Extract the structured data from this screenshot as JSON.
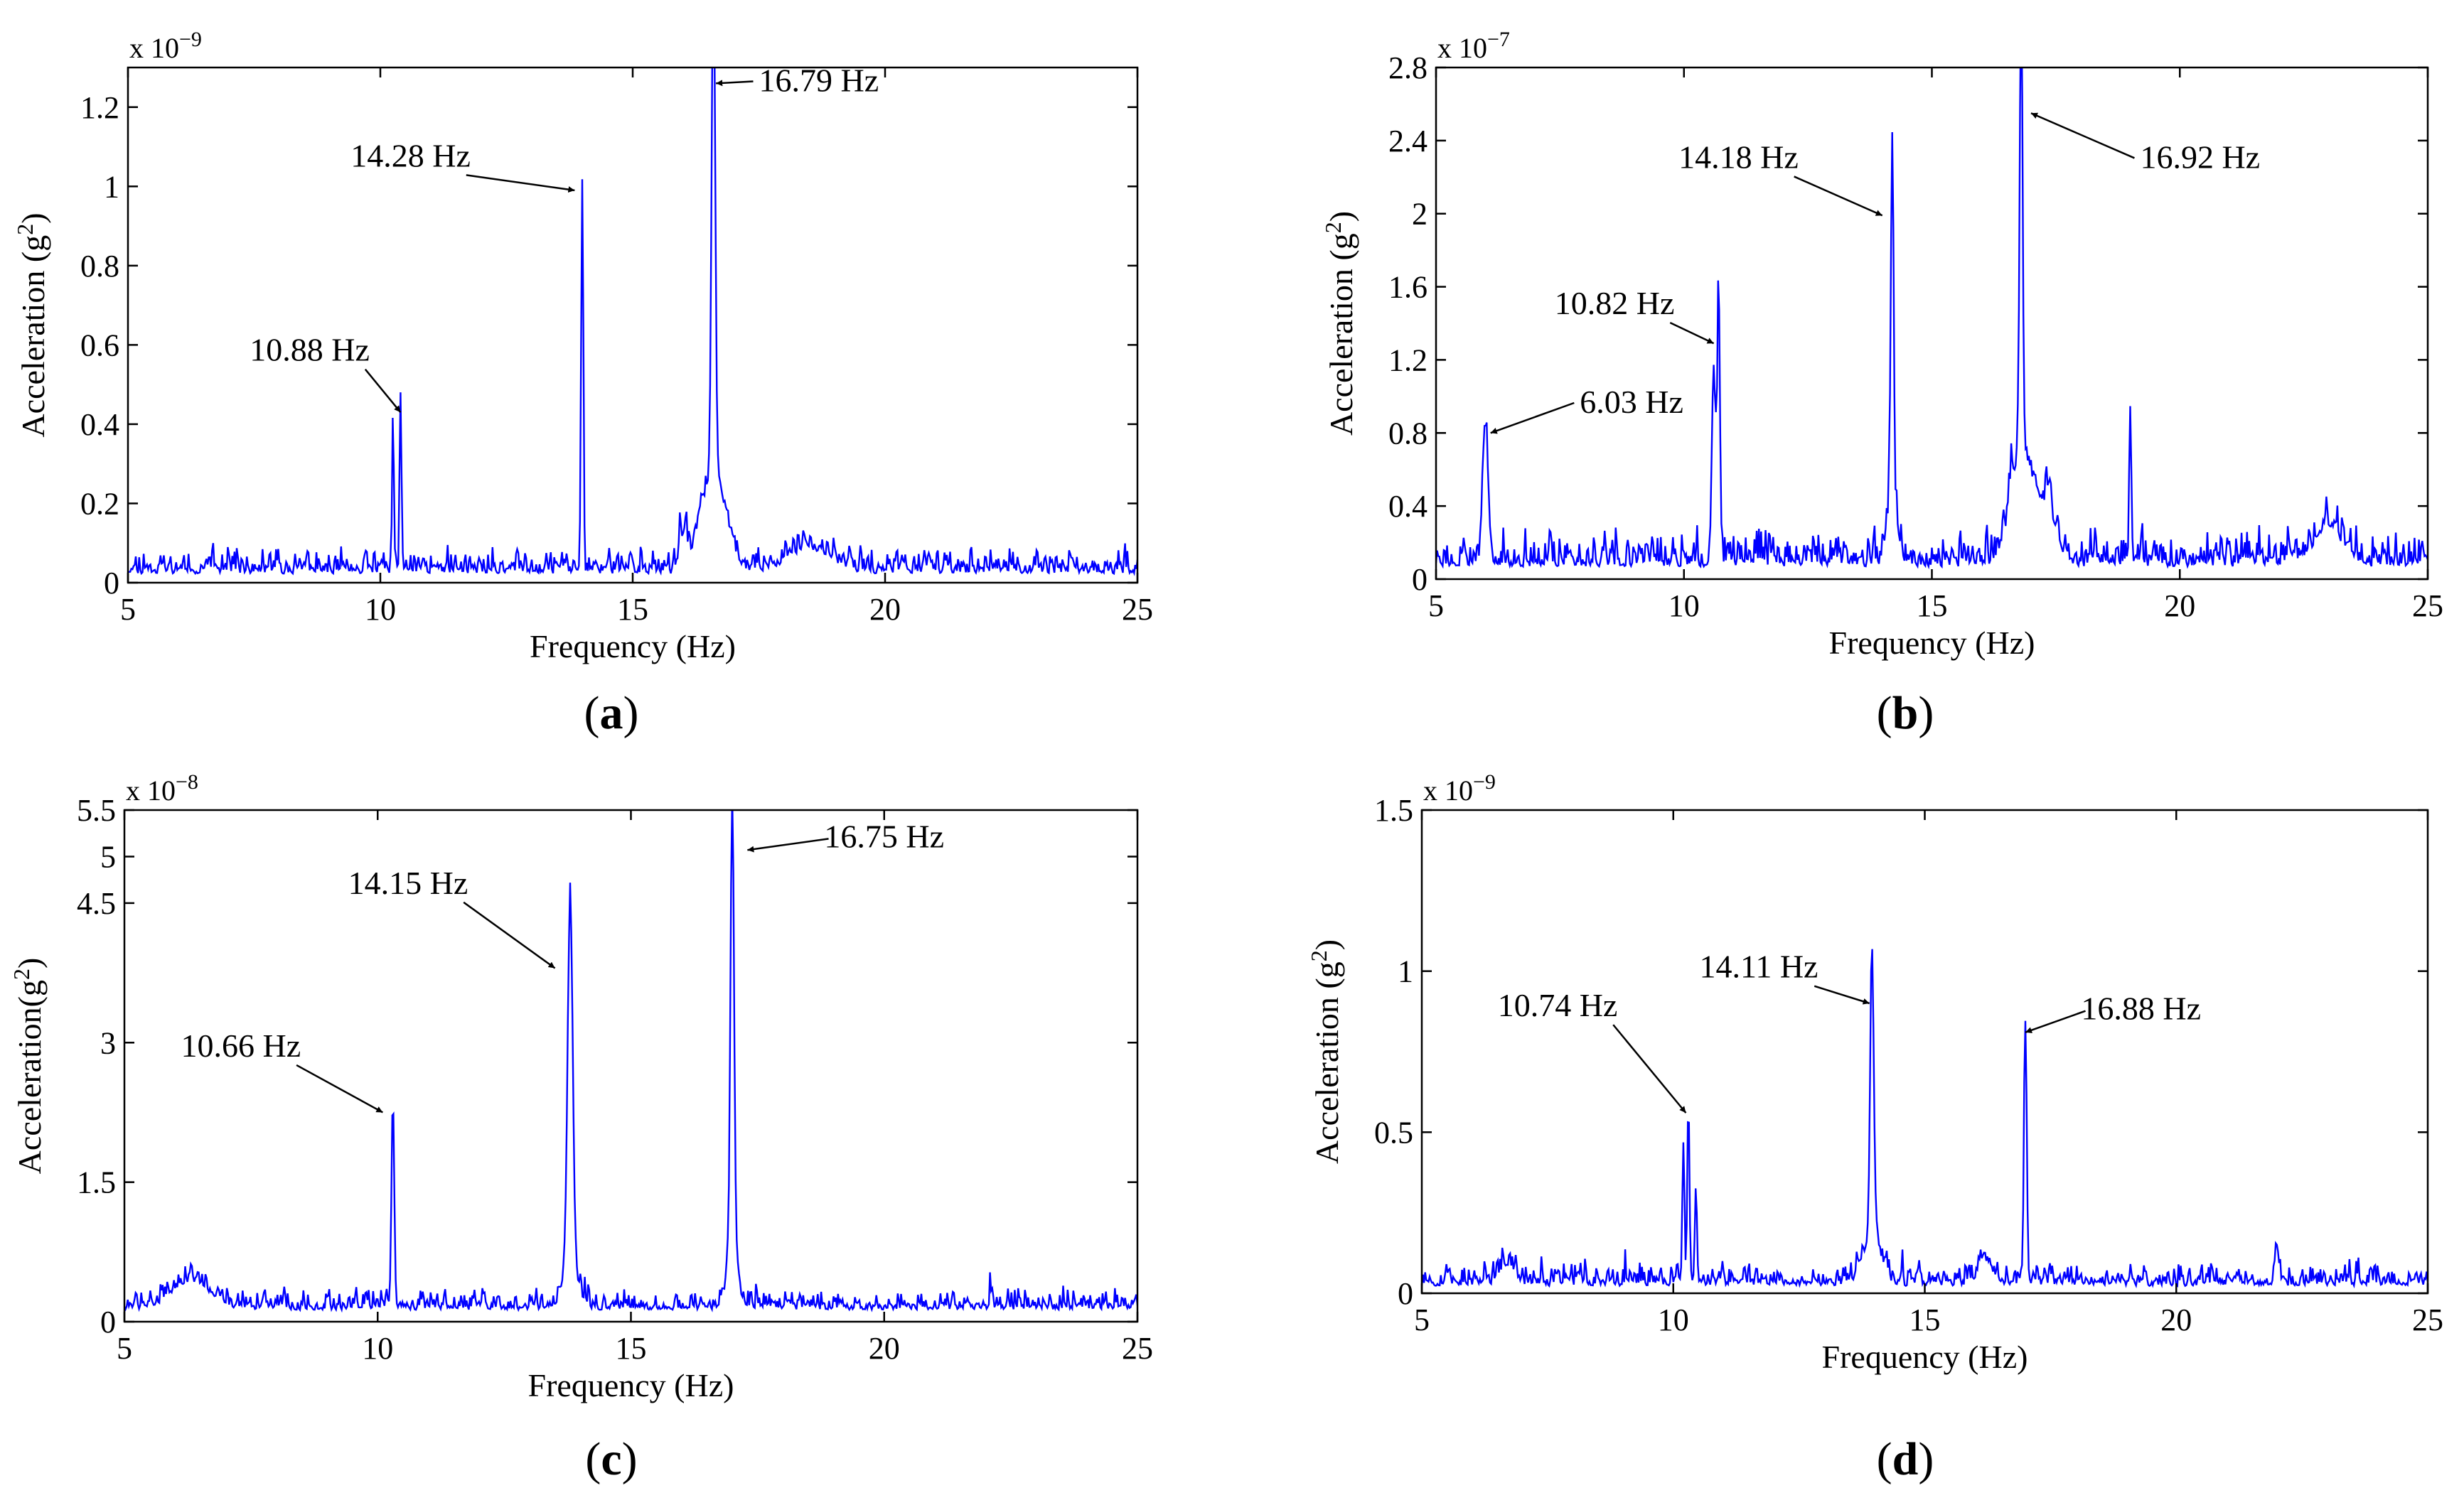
{
  "chart_data": [
    {
      "type": "line",
      "panel_label": "(a)",
      "xlabel": "Frequency (Hz)",
      "ylabel": "Acceleration (g",
      "ylabel_sup": "2",
      "ylabel_end": ")",
      "scale_base": "x 10",
      "scale_exp": "−9",
      "xlim": [
        5,
        25
      ],
      "ylim": [
        0,
        1.3
      ],
      "xticks": [
        5,
        10,
        15,
        20,
        25
      ],
      "xtick_labels": [
        "5",
        "10",
        "15",
        "20",
        "25"
      ],
      "yticks": [
        0,
        0.2,
        0.4,
        0.6,
        0.8,
        1,
        1.2
      ],
      "ytick_labels": [
        "0",
        "0.2",
        "0.4",
        "0.6",
        "0.8",
        "1",
        "1.2"
      ],
      "series": [
        {
          "name": "spectrum",
          "color": "#0000ff",
          "baseline": 0.05,
          "noise": 0.04,
          "seed": 11,
          "peaks": [
            [
              10.25,
              0.4,
              0.025
            ],
            [
              10.4,
              0.44,
              0.025
            ],
            [
              14.0,
              0.99,
              0.03
            ],
            [
              16.6,
              1.27,
              0.05
            ],
            [
              16.6,
              0.25,
              0.35
            ],
            [
              18.5,
              0.06,
              0.6
            ],
            [
              16.0,
              0.08,
              0.1
            ]
          ]
        }
      ],
      "annotations": [
        {
          "text": "10.88 Hz",
          "x": 10.88,
          "peak_x": 10.4,
          "peak_y": 0.43,
          "text_x": 8.6,
          "text_y": 0.56,
          "anchor": "middle"
        },
        {
          "text": "14.28 Hz",
          "x": 14.28,
          "peak_x": 13.85,
          "peak_y": 0.99,
          "text_x": 10.6,
          "text_y": 1.05,
          "anchor": "middle"
        },
        {
          "text": "16.79 Hz",
          "x": 16.79,
          "peak_x": 16.65,
          "peak_y": 1.26,
          "text_x": 17.5,
          "text_y": 1.24,
          "anchor": "start"
        }
      ]
    },
    {
      "type": "line",
      "panel_label": "(b)",
      "xlabel": "Frequency (Hz)",
      "ylabel": "Acceleration (g",
      "ylabel_sup": "2",
      "ylabel_end": ")",
      "scale_base": "x 10",
      "scale_exp": "−7",
      "xlim": [
        5,
        25
      ],
      "ylim": [
        0,
        2.8
      ],
      "xticks": [
        5,
        10,
        15,
        20,
        25
      ],
      "xtick_labels": [
        "5",
        "10",
        "15",
        "20",
        "25"
      ],
      "yticks": [
        0,
        0.4,
        0.8,
        1.2,
        1.6,
        2,
        2.4,
        2.8
      ],
      "ytick_labels": [
        "0",
        "0.4",
        "0.8",
        "1.2",
        "1.6",
        "2",
        "2.4",
        "2.8"
      ],
      "series": [
        {
          "name": "spectrum",
          "color": "#0000ff",
          "baseline": 0.15,
          "noise": 0.13,
          "seed": 23,
          "peaks": [
            [
              6.0,
              0.7,
              0.08
            ],
            [
              10.6,
              1.1,
              0.05
            ],
            [
              10.7,
              1.25,
              0.04
            ],
            [
              14.2,
              1.99,
              0.04
            ],
            [
              14.2,
              0.35,
              0.15
            ],
            [
              16.8,
              2.57,
              0.04
            ],
            [
              16.8,
              0.6,
              0.3
            ],
            [
              17.3,
              0.3,
              0.3
            ],
            [
              19.0,
              0.8,
              0.03
            ],
            [
              23.0,
              0.2,
              0.4
            ]
          ]
        }
      ],
      "annotations": [
        {
          "text": "6.03 Hz",
          "x": 6.03,
          "peak_x": 6.1,
          "peak_y": 0.8,
          "text_x": 7.9,
          "text_y": 0.91,
          "anchor": "start"
        },
        {
          "text": "10.82 Hz",
          "x": 10.82,
          "peak_x": 10.6,
          "peak_y": 1.29,
          "text_x": 8.6,
          "text_y": 1.45,
          "anchor": "middle"
        },
        {
          "text": "14.18 Hz",
          "x": 14.18,
          "peak_x": 14.0,
          "peak_y": 1.99,
          "text_x": 11.1,
          "text_y": 2.25,
          "anchor": "middle"
        },
        {
          "text": "16.92 Hz",
          "x": 16.92,
          "peak_x": 17.0,
          "peak_y": 2.55,
          "text_x": 19.2,
          "text_y": 2.25,
          "anchor": "start"
        }
      ]
    },
    {
      "type": "line",
      "panel_label": "(c)",
      "xlabel": "Frequency (Hz)",
      "ylabel": "Acceleration(g",
      "ylabel_sup": "2",
      "ylabel_end": ")",
      "scale_base": "x 10",
      "scale_exp": "−8",
      "xlim": [
        5,
        25
      ],
      "ylim": [
        0,
        5.5
      ],
      "xticks": [
        5,
        10,
        15,
        20,
        25
      ],
      "xtick_labels": [
        "5",
        "10",
        "15",
        "20",
        "25"
      ],
      "yticks": [
        0,
        1.5,
        3,
        4.5,
        5,
        5.5
      ],
      "ytick_labels": [
        "0",
        "1.5",
        "3",
        "4.5",
        "5",
        "5.5"
      ],
      "series": [
        {
          "name": "spectrum",
          "color": "#0000ff",
          "baseline": 0.28,
          "noise": 0.14,
          "seed": 37,
          "peaks": [
            [
              10.3,
              2.2,
              0.04
            ],
            [
              13.8,
              3.85,
              0.07
            ],
            [
              13.8,
              0.5,
              0.2
            ],
            [
              17.0,
              4.8,
              0.05
            ],
            [
              17.0,
              0.6,
              0.15
            ],
            [
              6.3,
              0.3,
              0.5
            ]
          ]
        }
      ],
      "annotations": [
        {
          "text": "10.66 Hz",
          "x": 10.66,
          "peak_x": 10.1,
          "peak_y": 2.25,
          "text_x": 7.3,
          "text_y": 2.85,
          "anchor": "middle"
        },
        {
          "text": "14.15 Hz",
          "x": 14.15,
          "peak_x": 13.5,
          "peak_y": 3.8,
          "text_x": 10.6,
          "text_y": 4.6,
          "anchor": "middle"
        },
        {
          "text": "16.75 Hz",
          "x": 16.75,
          "peak_x": 17.3,
          "peak_y": 5.07,
          "text_x": 20.0,
          "text_y": 5.1,
          "anchor": "middle"
        }
      ]
    },
    {
      "type": "line",
      "panel_label": "(d)",
      "xlabel": "Frequency (Hz)",
      "ylabel": "Acceleration (g",
      "ylabel_sup": "2",
      "ylabel_end": ")",
      "scale_base": "x 10",
      "scale_exp": "−9",
      "xlim": [
        5,
        25
      ],
      "ylim": [
        0,
        1.5
      ],
      "xticks": [
        5,
        10,
        15,
        20,
        25
      ],
      "xtick_labels": [
        "5",
        "10",
        "15",
        "20",
        "25"
      ],
      "yticks": [
        0,
        0.5,
        1,
        1.5
      ],
      "ytick_labels": [
        "0",
        "0.5",
        "1",
        "1.5"
      ],
      "series": [
        {
          "name": "spectrum",
          "color": "#0000ff",
          "baseline": 0.05,
          "noise": 0.045,
          "seed": 53,
          "peaks": [
            [
              10.2,
              0.42,
              0.03
            ],
            [
              10.3,
              0.55,
              0.03
            ],
            [
              10.45,
              0.3,
              0.03
            ],
            [
              13.95,
              0.9,
              0.05
            ],
            [
              13.95,
              0.15,
              0.25
            ],
            [
              17.0,
              0.81,
              0.04
            ],
            [
              16.2,
              0.07,
              0.2
            ],
            [
              22.0,
              0.12,
              0.06
            ],
            [
              6.7,
              0.06,
              0.2
            ]
          ]
        }
      ],
      "annotations": [
        {
          "text": "10.74 Hz",
          "x": 10.74,
          "peak_x": 10.25,
          "peak_y": 0.56,
          "text_x": 7.7,
          "text_y": 0.86,
          "anchor": "middle"
        },
        {
          "text": "14.11 Hz",
          "x": 14.11,
          "peak_x": 13.9,
          "peak_y": 0.9,
          "text_x": 11.7,
          "text_y": 0.98,
          "anchor": "middle"
        },
        {
          "text": "16.88 Hz",
          "x": 16.88,
          "peak_x": 17.0,
          "peak_y": 0.81,
          "text_x": 19.3,
          "text_y": 0.85,
          "anchor": "middle"
        }
      ]
    }
  ]
}
